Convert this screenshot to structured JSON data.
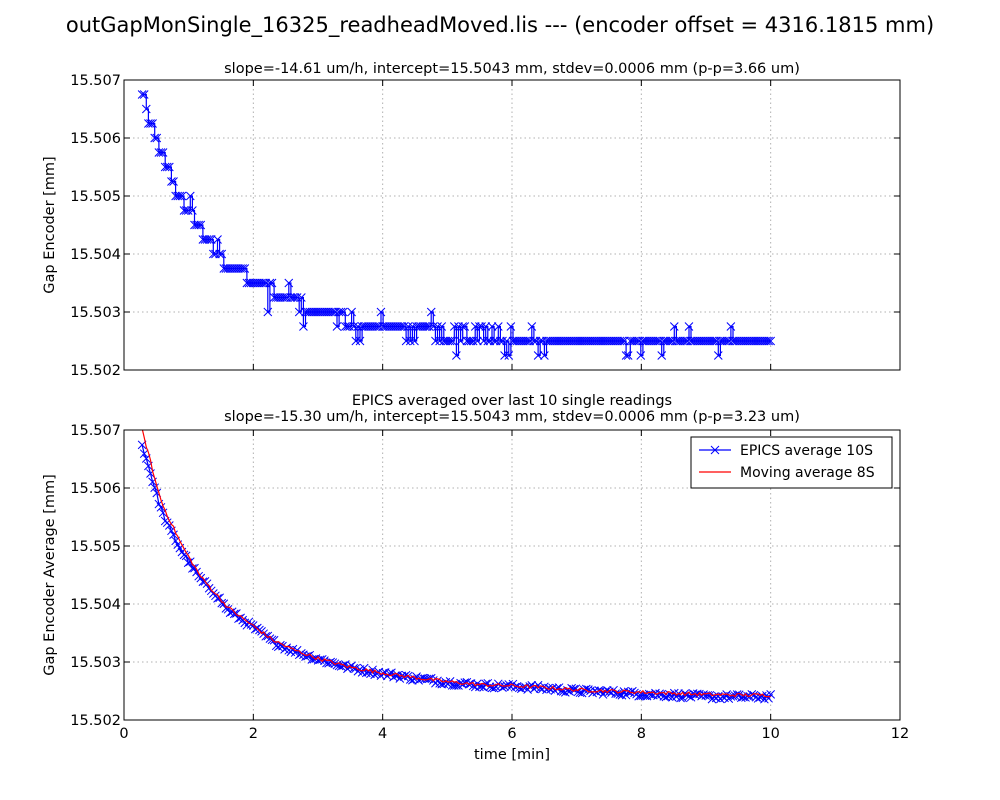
{
  "figure": {
    "suptitle": "outGapMonSingle_16325_readheadMoved.lis --- (encoder offset = 4316.1815 mm)"
  },
  "chart_data": [
    {
      "id": "top",
      "type": "line",
      "title_lines": [
        "slope=-14.61 um/h, intercept=15.5043 mm, stdev=0.0006 mm (p-p=3.66 um)"
      ],
      "xlabel": "",
      "ylabel": "Gap Encoder [mm]",
      "xlim": [
        0,
        12
      ],
      "ylim": [
        15.502,
        15.507
      ],
      "xticks": [
        0,
        2,
        4,
        6,
        8,
        10,
        12
      ],
      "xtick_labels_visible": false,
      "yticks": [
        "15.502",
        "15.503",
        "15.504",
        "15.505",
        "15.506",
        "15.507"
      ],
      "grid": true,
      "legend": false,
      "series": [
        {
          "kind": "step-line-with-x-markers",
          "color": "#0000ff",
          "marker": "x",
          "x": [
            0.28,
            0.35,
            0.42,
            0.5,
            0.58,
            0.66,
            0.75,
            0.85,
            0.95,
            1.05,
            1.15,
            1.3,
            1.45,
            1.6,
            1.8,
            2.0,
            2.2,
            2.5,
            2.8,
            3.0,
            3.2,
            3.5,
            3.8,
            4.2,
            4.6,
            5.0,
            5.5,
            6.0,
            6.5,
            7.0,
            7.5,
            8.0,
            8.5,
            9.0,
            9.5,
            10.0
          ],
          "y": [
            15.50675,
            15.5065,
            15.50625,
            15.506,
            15.50575,
            15.5055,
            15.50525,
            15.505,
            15.50475,
            15.5047,
            15.5045,
            15.50425,
            15.504,
            15.5038,
            15.50375,
            15.5035,
            15.5034,
            15.50325,
            15.5031,
            15.503,
            15.503,
            15.50285,
            15.50275,
            15.50275,
            15.5027,
            15.5026,
            15.5026,
            15.5025,
            15.5025,
            15.5025,
            15.5025,
            15.5025,
            15.5025,
            15.5025,
            15.5025,
            15.5025
          ]
        }
      ]
    },
    {
      "id": "bottom",
      "type": "line",
      "title_lines": [
        "EPICS averaged over last 10 single readings",
        "slope=-15.30 um/h, intercept=15.5043 mm, stdev=0.0006 mm (p-p=3.23 um)"
      ],
      "xlabel": "time [min]",
      "ylabel": "Gap Encoder Average [mm]",
      "xlim": [
        0,
        12
      ],
      "ylim": [
        15.502,
        15.507
      ],
      "xticks": [
        0,
        2,
        4,
        6,
        8,
        10,
        12
      ],
      "xtick_labels": [
        "0",
        "2",
        "4",
        "6",
        "8",
        "10",
        "12"
      ],
      "yticks": [
        "15.502",
        "15.503",
        "15.504",
        "15.505",
        "15.506",
        "15.507"
      ],
      "grid": true,
      "legend": "top-right",
      "series": [
        {
          "name": "EPICS average 10S",
          "kind": "line-with-x-markers",
          "color": "#0000ff",
          "marker": "x",
          "x": [
            0.28,
            0.4,
            0.5,
            0.6,
            0.75,
            0.9,
            1.05,
            1.2,
            1.4,
            1.6,
            1.8,
            2.0,
            2.3,
            2.6,
            3.0,
            3.5,
            4.0,
            4.5,
            5.0,
            5.5,
            6.0,
            6.5,
            7.0,
            7.5,
            8.0,
            8.5,
            9.0,
            9.5,
            10.0
          ],
          "y": [
            15.50675,
            15.5063,
            15.5059,
            15.50555,
            15.5052,
            15.5049,
            15.50465,
            15.5044,
            15.5042,
            15.5039,
            15.50375,
            15.5036,
            15.50335,
            15.5032,
            15.50305,
            15.5029,
            15.5028,
            15.50272,
            15.50265,
            15.5026,
            15.50258,
            15.50255,
            15.5025,
            15.50248,
            15.50245,
            15.50243,
            15.5024,
            15.5024,
            15.5024
          ]
        },
        {
          "name": "Moving average 8S",
          "kind": "line",
          "color": "#ff0000",
          "x": [
            0.28,
            0.4,
            0.5,
            0.6,
            0.75,
            0.9,
            1.05,
            1.2,
            1.4,
            1.6,
            1.8,
            2.0,
            2.3,
            2.6,
            3.0,
            3.5,
            4.0,
            4.5,
            5.0,
            5.5,
            6.0,
            6.5,
            7.0,
            7.5,
            8.0,
            8.5,
            9.0,
            9.5,
            10.0
          ],
          "y": [
            15.507,
            15.5065,
            15.50605,
            15.5057,
            15.50535,
            15.505,
            15.50472,
            15.50445,
            15.5042,
            15.50395,
            15.50378,
            15.50362,
            15.50338,
            15.50322,
            15.50306,
            15.50291,
            15.50281,
            15.50273,
            15.50266,
            15.50261,
            15.50259,
            15.50256,
            15.50252,
            15.5025,
            15.50248,
            15.50246,
            15.50244,
            15.50243,
            15.50243
          ]
        }
      ]
    }
  ]
}
